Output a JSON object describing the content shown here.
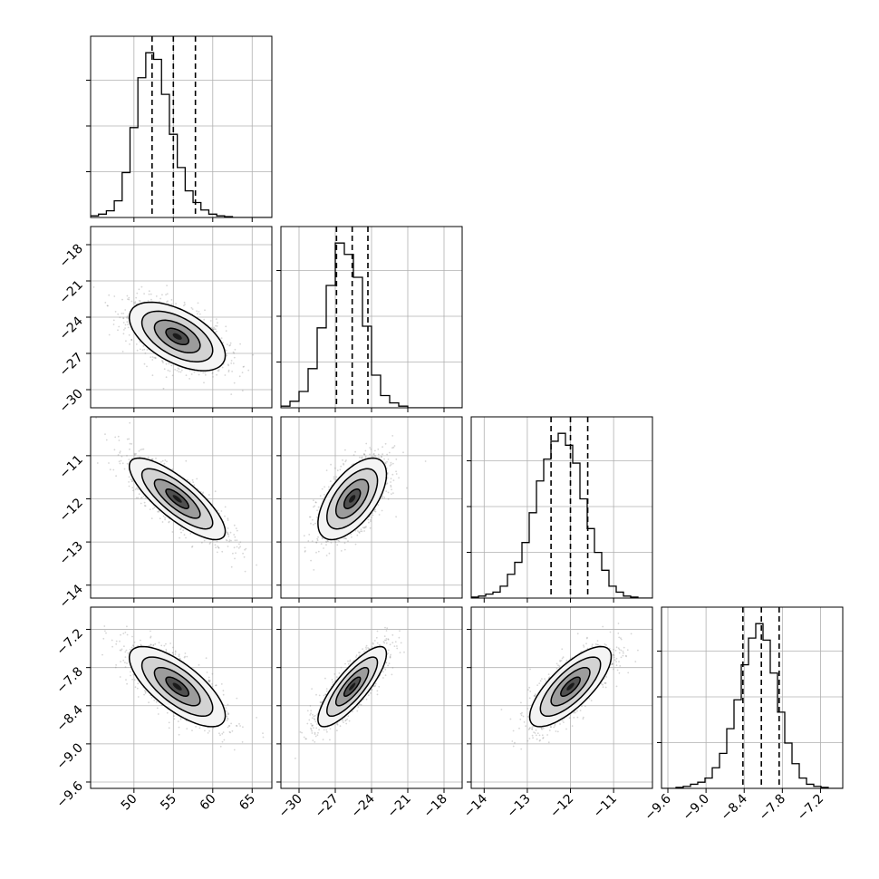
{
  "chart_data": {
    "type": "corner",
    "grid": true,
    "parameters": [
      {
        "range": [
          44.5,
          67.5
        ],
        "ticks": [
          "50",
          "55",
          "60",
          "65"
        ],
        "tick_values": [
          50,
          55,
          60,
          65
        ],
        "quantiles": [
          52.3,
          55.0,
          57.8
        ],
        "hist_bins": [
          44.5,
          67.5,
          23
        ],
        "hist_counts": [
          2,
          4,
          8,
          20,
          54,
          108,
          168,
          198,
          190,
          148,
          100,
          60,
          32,
          18,
          9,
          4,
          2,
          1,
          0,
          0,
          0,
          0,
          0
        ],
        "mean": 55.5,
        "sd": 2.9
      },
      {
        "range": [
          -31.5,
          -16.5
        ],
        "ticks": [
          "-30",
          "-27",
          "-24",
          "-21",
          "-18"
        ],
        "tick_values": [
          -30,
          -27,
          -24,
          -21,
          -18
        ],
        "quantiles": [
          -26.9,
          -25.6,
          -24.3
        ],
        "hist_bins": [
          -31.5,
          -16.5,
          20
        ],
        "hist_counts": [
          2,
          8,
          20,
          48,
          98,
          150,
          202,
          188,
          160,
          100,
          40,
          15,
          6,
          2,
          0,
          0,
          0,
          0,
          0,
          0
        ],
        "mean": -25.6,
        "sd": 1.35
      },
      {
        "range": [
          -14.3,
          -10.1
        ],
        "ticks": [
          "-14",
          "-13",
          "-12",
          "-11"
        ],
        "tick_values": [
          -14,
          -13,
          -12,
          -11
        ],
        "quantiles": [
          -12.45,
          -12.0,
          -11.6
        ],
        "hist_bins": [
          -14.3,
          -10.1,
          25
        ],
        "hist_counts": [
          1,
          2,
          4,
          6,
          12,
          24,
          36,
          56,
          86,
          118,
          140,
          158,
          166,
          154,
          136,
          100,
          70,
          46,
          28,
          12,
          6,
          2,
          1,
          0,
          0
        ],
        "mean": -12.0,
        "sd": 0.45
      },
      {
        "range": [
          -9.7,
          -6.85
        ],
        "ticks": [
          "-9.6",
          "-9.0",
          "-8.4",
          "-7.8",
          "-7.2"
        ],
        "tick_values": [
          -9.6,
          -9.0,
          -8.4,
          -7.8,
          -7.2
        ],
        "quantiles": [
          -8.42,
          -8.13,
          -7.85
        ],
        "hist_bins": [
          -9.7,
          -6.85,
          25
        ],
        "hist_counts": [
          0,
          0,
          1,
          2,
          4,
          6,
          10,
          20,
          34,
          58,
          86,
          120,
          146,
          160,
          144,
          112,
          74,
          44,
          24,
          10,
          4,
          2,
          1,
          0,
          0
        ],
        "mean": -8.1,
        "sd": 0.3
      }
    ],
    "correlations": {
      "0_1": -0.55,
      "0_2": -0.8,
      "0_3": -0.72,
      "1_2": 0.6,
      "1_3": 0.82,
      "2_3": 0.75
    }
  }
}
